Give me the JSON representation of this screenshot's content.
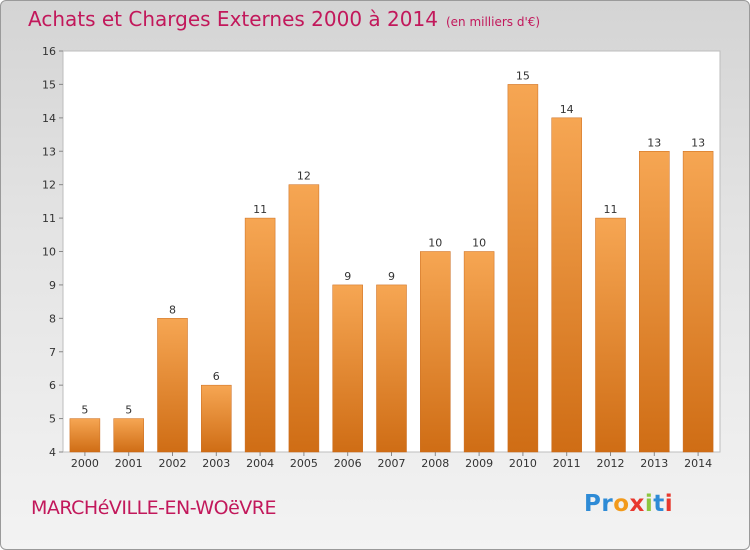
{
  "header": {
    "title": "Achats et Charges Externes 2000 à 2014",
    "unit": "(en milliers d'€)"
  },
  "footer": {
    "commune": "MARCHéVILLE-EN-WOëVRE",
    "logo": {
      "text": "Proxiti",
      "letter_colors": [
        "#2e8bd6",
        "#2e8bd6",
        "#f29a1b",
        "#e8382e",
        "#8cc63f",
        "#2e8bd6",
        "#e8382e"
      ]
    }
  },
  "colors": {
    "title": "#c2185b",
    "bar_light": "#f6a653",
    "bar_dark": "#cf6d15"
  },
  "chart_data": {
    "type": "bar",
    "title": "Achats et Charges Externes 2000 à 2014",
    "subtitle": "(en milliers d'€)",
    "xlabel": "",
    "ylabel": "",
    "categories": [
      "2000",
      "2001",
      "2002",
      "2003",
      "2004",
      "2005",
      "2006",
      "2007",
      "2008",
      "2009",
      "2010",
      "2011",
      "2012",
      "2013",
      "2014"
    ],
    "values": [
      5,
      5,
      8,
      6,
      11,
      12,
      9,
      9,
      10,
      10,
      15,
      14,
      11,
      13,
      13
    ],
    "ylim": [
      4,
      16
    ],
    "yticks": [
      4,
      5,
      6,
      7,
      8,
      9,
      10,
      11,
      12,
      13,
      14,
      15,
      16
    ],
    "grid": false,
    "legend": "none"
  }
}
